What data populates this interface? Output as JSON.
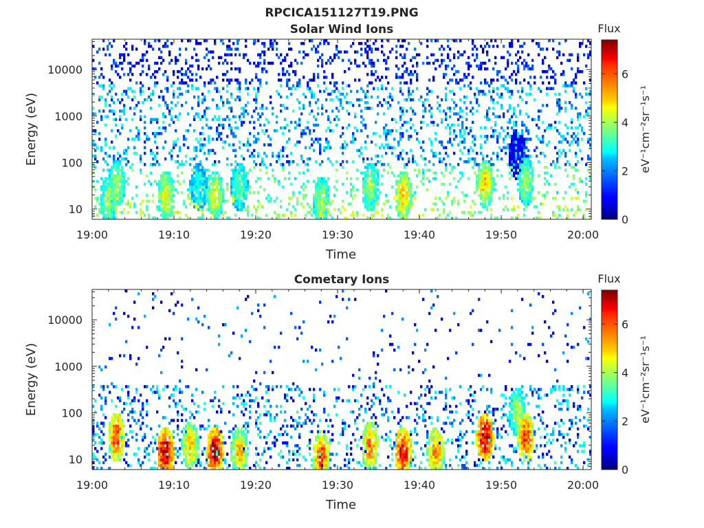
{
  "figure": {
    "title": "RPCICA151127T19.PNG"
  },
  "chart_data": [
    {
      "type": "heatmap",
      "title": "Solar Wind Ions",
      "xlabel": "Time",
      "ylabel": "Energy (eV)",
      "y_scale": "log",
      "xlim": [
        "19:00",
        "20:01"
      ],
      "ylim": [
        6,
        45000
      ],
      "x_ticks": [
        "19:00",
        "19:10",
        "19:20",
        "19:30",
        "19:40",
        "19:50",
        "20:00"
      ],
      "y_ticks": [
        "10",
        "100",
        "1000",
        "10000"
      ],
      "colorbar": {
        "label": "Flux",
        "unit_label": "eV⁻¹cm⁻²sr⁻¹s⁻¹",
        "range": [
          0,
          7.4
        ],
        "ticks": [
          "0",
          "2",
          "4",
          "6"
        ],
        "colormap": "jet"
      },
      "features": [
        {
          "time": "19:02",
          "energy": 15,
          "flux": 4.0
        },
        {
          "time": "19:03",
          "energy": 35,
          "flux": 4.0
        },
        {
          "time": "19:09",
          "energy": 20,
          "flux": 4.5
        },
        {
          "time": "19:13",
          "energy": 30,
          "flux": 3.0
        },
        {
          "time": "19:15",
          "energy": 20,
          "flux": 4.5
        },
        {
          "time": "19:18",
          "energy": 30,
          "flux": 3.5
        },
        {
          "time": "19:28",
          "energy": 15,
          "flux": 4.0
        },
        {
          "time": "19:34",
          "energy": 30,
          "flux": 4.0
        },
        {
          "time": "19:38",
          "energy": 20,
          "flux": 5.0
        },
        {
          "time": "19:48",
          "energy": 35,
          "flux": 5.0
        },
        {
          "time": "19:52",
          "energy": 150,
          "flux": 1.0
        },
        {
          "time": "19:53",
          "energy": 40,
          "flux": 4.0
        }
      ]
    },
    {
      "type": "heatmap",
      "title": "Cometary Ions",
      "xlabel": "Time",
      "ylabel": "Energy (eV)",
      "y_scale": "log",
      "xlim": [
        "19:00",
        "20:01"
      ],
      "ylim": [
        6,
        45000
      ],
      "x_ticks": [
        "19:00",
        "19:10",
        "19:20",
        "19:30",
        "19:40",
        "19:50",
        "20:00"
      ],
      "y_ticks": [
        "10",
        "100",
        "1000",
        "10000"
      ],
      "colorbar": {
        "label": "Flux",
        "unit_label": "eV⁻¹cm⁻²sr⁻¹s⁻¹",
        "range": [
          0,
          7.4
        ],
        "ticks": [
          "0",
          "2",
          "4",
          "6"
        ],
        "colormap": "jet"
      },
      "features": [
        {
          "time": "19:03",
          "energy": 30,
          "flux": 6.0
        },
        {
          "time": "19:09",
          "energy": 15,
          "flux": 7.0
        },
        {
          "time": "19:12",
          "energy": 20,
          "flux": 5.0
        },
        {
          "time": "19:15",
          "energy": 15,
          "flux": 7.0
        },
        {
          "time": "19:18",
          "energy": 15,
          "flux": 5.0
        },
        {
          "time": "19:28",
          "energy": 12,
          "flux": 6.0
        },
        {
          "time": "19:34",
          "energy": 20,
          "flux": 5.5
        },
        {
          "time": "19:38",
          "energy": 15,
          "flux": 6.5
        },
        {
          "time": "19:42",
          "energy": 15,
          "flux": 5.5
        },
        {
          "time": "19:48",
          "energy": 30,
          "flux": 7.0
        },
        {
          "time": "19:52",
          "energy": 100,
          "flux": 4.0
        },
        {
          "time": "19:53",
          "energy": 30,
          "flux": 6.0
        }
      ]
    }
  ]
}
